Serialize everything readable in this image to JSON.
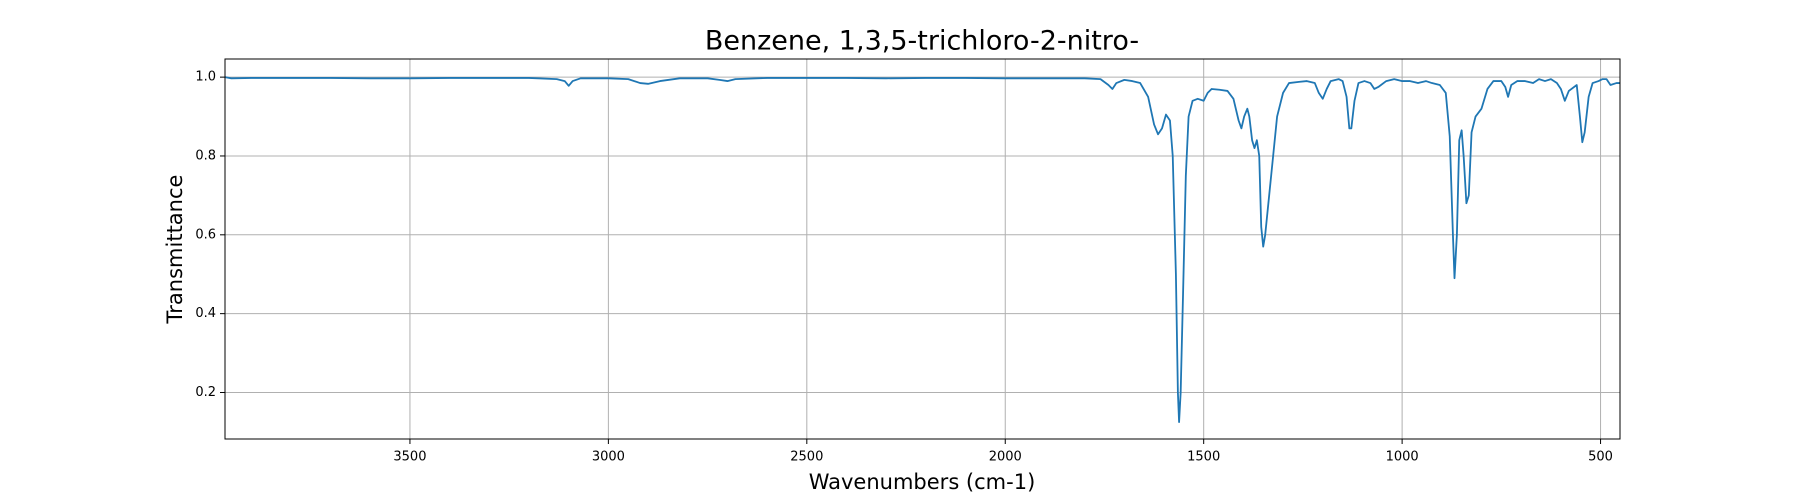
{
  "chart_data": {
    "type": "line",
    "title": "Benzene, 1,3,5-trichloro-2-nitro-",
    "x_label": "Wavenumbers (cm-1)",
    "y_label": "Transmittance",
    "x": [
      3966,
      3950,
      3900,
      3800,
      3700,
      3600,
      3500,
      3400,
      3300,
      3200,
      3130,
      3110,
      3100,
      3090,
      3070,
      3000,
      2950,
      2920,
      2900,
      2870,
      2820,
      2750,
      2720,
      2700,
      2680,
      2600,
      2500,
      2400,
      2300,
      2200,
      2100,
      2000,
      1900,
      1800,
      1760,
      1740,
      1730,
      1720,
      1700,
      1680,
      1660,
      1640,
      1625,
      1615,
      1605,
      1595,
      1585,
      1578,
      1570,
      1565,
      1562,
      1558,
      1552,
      1545,
      1538,
      1528,
      1515,
      1500,
      1490,
      1480,
      1460,
      1440,
      1425,
      1412,
      1405,
      1398,
      1390,
      1385,
      1378,
      1372,
      1366,
      1360,
      1355,
      1350,
      1345,
      1335,
      1325,
      1315,
      1300,
      1285,
      1260,
      1240,
      1220,
      1210,
      1200,
      1190,
      1180,
      1160,
      1150,
      1140,
      1133,
      1128,
      1120,
      1110,
      1095,
      1080,
      1070,
      1060,
      1040,
      1020,
      1000,
      980,
      960,
      940,
      925,
      905,
      890,
      880,
      872,
      868,
      862,
      856,
      850,
      845,
      838,
      832,
      825,
      815,
      800,
      785,
      770,
      750,
      740,
      733,
      725,
      710,
      690,
      670,
      655,
      640,
      625,
      610,
      600,
      590,
      580,
      560,
      552,
      546,
      540,
      530,
      520,
      505,
      495,
      485,
      475,
      460,
      451
    ],
    "series": [
      {
        "name": "Transmittance",
        "color": "#1f77b4",
        "values": [
          1.0,
          0.997,
          0.998,
          0.998,
          0.998,
          0.997,
          0.997,
          0.998,
          0.998,
          0.998,
          0.995,
          0.99,
          0.978,
          0.99,
          0.997,
          0.997,
          0.995,
          0.985,
          0.983,
          0.99,
          0.997,
          0.997,
          0.993,
          0.99,
          0.995,
          0.998,
          0.998,
          0.998,
          0.997,
          0.998,
          0.998,
          0.997,
          0.997,
          0.997,
          0.995,
          0.98,
          0.97,
          0.985,
          0.993,
          0.99,
          0.985,
          0.95,
          0.88,
          0.855,
          0.87,
          0.905,
          0.89,
          0.8,
          0.5,
          0.2,
          0.125,
          0.2,
          0.45,
          0.75,
          0.9,
          0.94,
          0.945,
          0.94,
          0.96,
          0.97,
          0.968,
          0.965,
          0.945,
          0.89,
          0.87,
          0.9,
          0.92,
          0.9,
          0.84,
          0.82,
          0.84,
          0.8,
          0.62,
          0.57,
          0.6,
          0.7,
          0.8,
          0.9,
          0.96,
          0.985,
          0.988,
          0.99,
          0.985,
          0.96,
          0.945,
          0.97,
          0.99,
          0.995,
          0.99,
          0.95,
          0.87,
          0.87,
          0.94,
          0.985,
          0.99,
          0.985,
          0.97,
          0.975,
          0.99,
          0.995,
          0.99,
          0.99,
          0.985,
          0.99,
          0.985,
          0.98,
          0.96,
          0.85,
          0.6,
          0.49,
          0.6,
          0.84,
          0.865,
          0.8,
          0.68,
          0.7,
          0.86,
          0.9,
          0.92,
          0.97,
          0.99,
          0.99,
          0.975,
          0.95,
          0.98,
          0.99,
          0.99,
          0.985,
          0.995,
          0.99,
          0.995,
          0.985,
          0.97,
          0.94,
          0.965,
          0.98,
          0.9,
          0.835,
          0.86,
          0.95,
          0.985,
          0.99,
          0.995,
          0.995,
          0.98,
          0.985,
          0.985
        ]
      }
    ],
    "xlim": [
      3966,
      451
    ],
    "ylim": [
      0.082,
      1.046
    ],
    "xticks": [
      3500,
      3000,
      2500,
      2000,
      1500,
      1000,
      500
    ],
    "yticks": [
      0.2,
      0.4,
      0.6,
      0.8,
      {
        "value": 1,
        "label": "1.0"
      }
    ],
    "grid": true
  }
}
